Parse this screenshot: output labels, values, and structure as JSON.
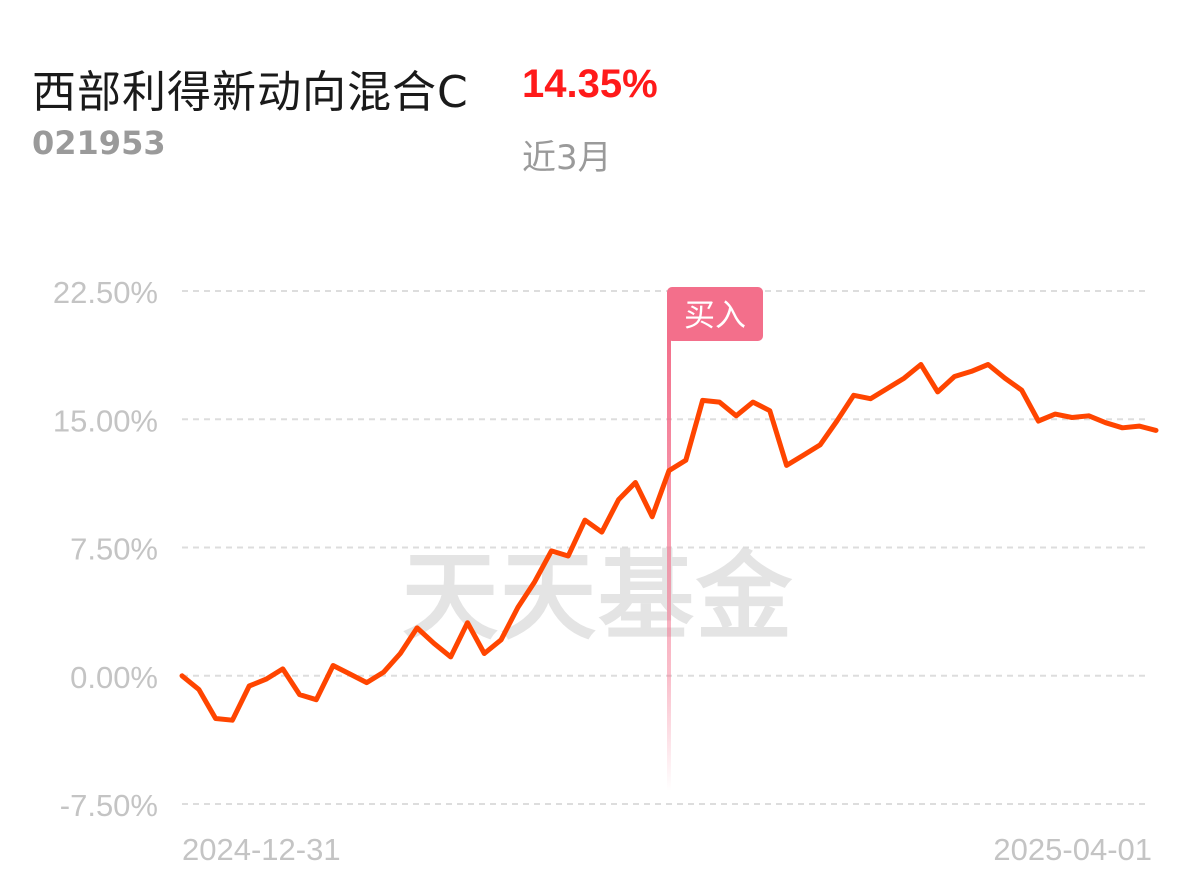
{
  "fund": {
    "name": "西部利得新动向混合C",
    "code": "021953"
  },
  "performance": {
    "return": "14.35%",
    "period": "近3月"
  },
  "watermark": "天天基金",
  "colors": {
    "line": "#ff4500",
    "positive": "#ff1a1a",
    "marker": "#f36f8b",
    "grid": "#dddddd",
    "axis_text": "#c4c4c4",
    "watermark": "#e4e4e4"
  },
  "chart_data": {
    "type": "line",
    "ylim": [
      -7.5,
      22.5
    ],
    "y_ticks": [
      22.5,
      15.0,
      7.5,
      0.0,
      -7.5
    ],
    "y_tick_labels": [
      "22.50%",
      "15.00%",
      "7.50%",
      "0.00%",
      "-7.50%"
    ],
    "x_labels": [
      "2024-12-31",
      "2025-04-01"
    ],
    "grid": true,
    "marker": {
      "label": "买入",
      "index": 29
    },
    "values": [
      0.0,
      -0.8,
      -2.5,
      -2.6,
      -0.6,
      -0.2,
      0.4,
      -1.1,
      -1.4,
      0.6,
      0.1,
      -0.4,
      0.2,
      1.3,
      2.8,
      1.9,
      1.1,
      3.1,
      1.3,
      2.1,
      4.0,
      5.5,
      7.3,
      7.0,
      9.1,
      8.4,
      10.3,
      11.3,
      9.3,
      12.0,
      12.6,
      16.1,
      16.0,
      15.2,
      16.0,
      15.5,
      12.3,
      12.9,
      13.5,
      14.9,
      16.4,
      16.2,
      16.8,
      17.4,
      18.2,
      16.6,
      17.5,
      17.8,
      18.2,
      17.4,
      16.7,
      14.9,
      15.3,
      15.1,
      15.2,
      14.8,
      14.5,
      14.6,
      14.35
    ]
  }
}
